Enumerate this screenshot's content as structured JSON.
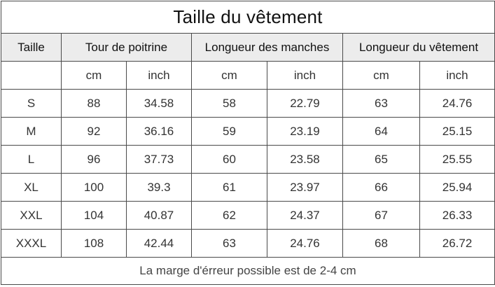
{
  "title": "Taille du vêtement",
  "headers": {
    "size": "Taille",
    "chest": "Tour de poitrine",
    "sleeve": "Longueur des manches",
    "length": "Longueur du vêtement"
  },
  "units": [
    "cm",
    "inch",
    "cm",
    "inch",
    "cm",
    "inch"
  ],
  "rows": [
    {
      "size": "S",
      "chest_cm": "88",
      "chest_in": "34.58",
      "sleeve_cm": "58",
      "sleeve_in": "22.79",
      "length_cm": "63",
      "length_in": "24.76"
    },
    {
      "size": "M",
      "chest_cm": "92",
      "chest_in": "36.16",
      "sleeve_cm": "59",
      "sleeve_in": "23.19",
      "length_cm": "64",
      "length_in": "25.15"
    },
    {
      "size": "L",
      "chest_cm": "96",
      "chest_in": "37.73",
      "sleeve_cm": "60",
      "sleeve_in": "23.58",
      "length_cm": "65",
      "length_in": "25.55"
    },
    {
      "size": "XL",
      "chest_cm": "100",
      "chest_in": "39.3",
      "sleeve_cm": "61",
      "sleeve_in": "23.97",
      "length_cm": "66",
      "length_in": "25.94"
    },
    {
      "size": "XXL",
      "chest_cm": "104",
      "chest_in": "40.87",
      "sleeve_cm": "62",
      "sleeve_in": "24.37",
      "length_cm": "67",
      "length_in": "26.33"
    },
    {
      "size": "XXXL",
      "chest_cm": "108",
      "chest_in": "42.44",
      "sleeve_cm": "63",
      "sleeve_in": "24.76",
      "length_cm": "68",
      "length_in": "26.72"
    }
  ],
  "note": "La marge d'érreur possible est de 2-4 cm",
  "colors": {
    "header_background": "#ececec",
    "border": "#4a4a4a"
  }
}
